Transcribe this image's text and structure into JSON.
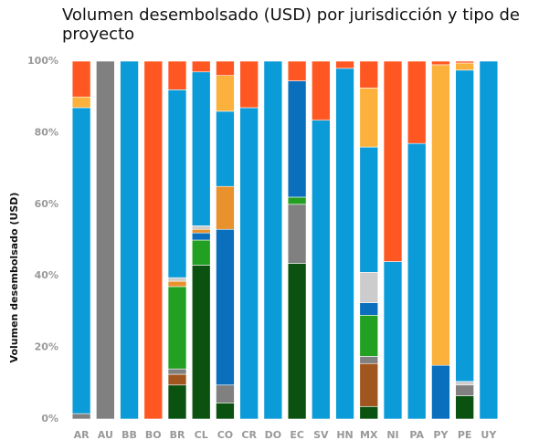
{
  "chart_data": {
    "type": "stacked_bar",
    "title": "Volumen desembolsado (USD) por jurisdicción y tipo de proyecto",
    "y_label": "Volumen desembolsado (USD)",
    "categories": [
      "AR",
      "AU",
      "BB",
      "BO",
      "BR",
      "CL",
      "CO",
      "CR",
      "DO",
      "EC",
      "SV",
      "HN",
      "MX",
      "NI",
      "PA",
      "PY",
      "PE",
      "UY"
    ],
    "ylim": [
      0,
      100
    ],
    "yticks": [
      {
        "value": 0,
        "label": "0%"
      },
      {
        "value": 20,
        "label": "20%"
      },
      {
        "value": 40,
        "label": "40%"
      },
      {
        "value": 60,
        "label": "60%"
      },
      {
        "value": 80,
        "label": "80%"
      },
      {
        "value": 100,
        "label": "100%"
      }
    ],
    "series": [
      {
        "color": "#0b5210",
        "values": [
          0,
          0,
          0,
          0,
          9.5,
          43,
          4.5,
          0,
          0,
          43.5,
          0,
          0,
          3.5,
          0,
          0,
          0,
          6.5,
          0
        ]
      },
      {
        "color": "#a0561e",
        "values": [
          0,
          0,
          0,
          0,
          3,
          0,
          0,
          0,
          0,
          0,
          0,
          0,
          12,
          0,
          0,
          0,
          0,
          0
        ]
      },
      {
        "color": "#808080",
        "values": [
          1.5,
          100,
          0,
          0,
          1.5,
          0,
          5,
          0,
          0,
          16.5,
          0,
          0,
          2,
          0,
          0,
          0,
          3,
          0
        ]
      },
      {
        "color": "#22a022",
        "values": [
          0,
          0,
          0,
          0,
          23,
          7,
          0,
          0,
          0,
          2,
          0,
          0,
          11.5,
          0,
          0,
          0,
          0,
          0
        ]
      },
      {
        "color": "#0a6fbd",
        "values": [
          0,
          0,
          0,
          0,
          0,
          2,
          43.5,
          0,
          0,
          32.5,
          0,
          0,
          3.5,
          0,
          0,
          15,
          0,
          0
        ]
      },
      {
        "color": "#e8912d",
        "values": [
          0,
          0,
          0,
          0,
          1.5,
          1,
          12,
          0,
          0,
          0,
          0,
          0,
          0,
          0,
          0,
          0,
          0,
          0
        ]
      },
      {
        "color": "#cccccc",
        "values": [
          0,
          0,
          0,
          0,
          1,
          1,
          0,
          0,
          0,
          0,
          0,
          0,
          8.5,
          0,
          0,
          0,
          1,
          0
        ]
      },
      {
        "color": "#0a9bd8",
        "values": [
          85.5,
          0,
          100,
          0,
          52.5,
          43,
          21,
          87,
          100,
          0,
          83.5,
          98,
          35,
          44,
          77,
          0,
          87,
          100
        ]
      },
      {
        "color": "#fbb13c",
        "values": [
          3,
          0,
          0,
          0,
          0,
          0,
          10,
          0,
          0,
          0,
          0,
          0,
          16.5,
          0,
          0,
          84,
          2,
          0
        ]
      },
      {
        "color": "#ff5722",
        "values": [
          10,
          0,
          0,
          100,
          8,
          3,
          4,
          13,
          0,
          5.5,
          16.5,
          2,
          7.5,
          56,
          23,
          1,
          0.5,
          0
        ]
      }
    ]
  }
}
